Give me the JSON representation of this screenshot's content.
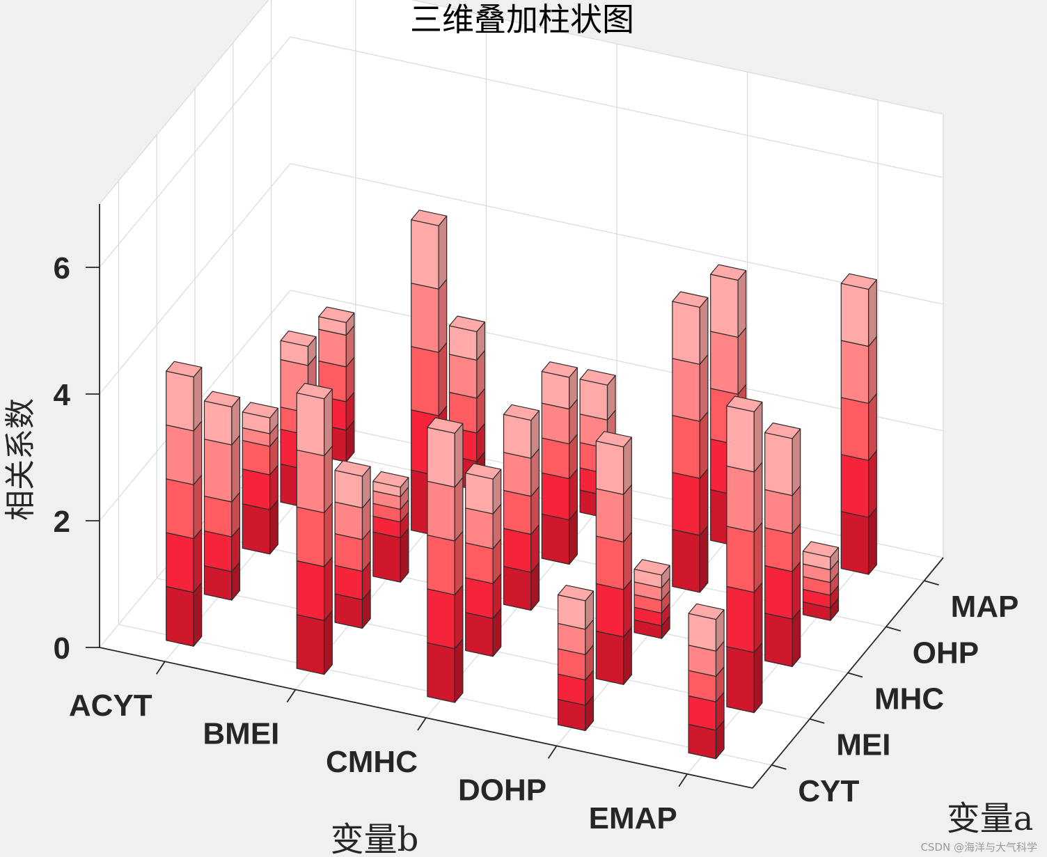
{
  "chart_data": {
    "type": "bar",
    "subtype": "3d-stacked",
    "title": "三维叠加柱状图",
    "xlabel": "变量b",
    "ylabel": "变量a",
    "zlabel": "相关系数",
    "x_categories": [
      "ACYT",
      "BMEI",
      "CMHC",
      "DOHP",
      "EMAP"
    ],
    "y_categories": [
      "CYT",
      "MEI",
      "MHC",
      "OHP",
      "MAP"
    ],
    "zticks": [
      "0",
      "2",
      "4",
      "6"
    ],
    "zlim": [
      0,
      7
    ],
    "grid": true,
    "stack_colors": [
      "#d0182c",
      "#f5243a",
      "#ff5c62",
      "#ff8587",
      "#ffaaa8"
    ],
    "bars": [
      {
        "x": "ACYT",
        "y": "CYT",
        "segments": [
          0.85,
          0.85,
          0.85,
          0.85,
          0.85
        ]
      },
      {
        "x": "ACYT",
        "y": "MEI",
        "segments": [
          0.45,
          0.55,
          0.55,
          0.9,
          0.6
        ]
      },
      {
        "x": "ACYT",
        "y": "MHC",
        "segments": [
          0.7,
          0.55,
          0.45,
          0.2,
          0.25
        ]
      },
      {
        "x": "ACYT",
        "y": "OHP",
        "segments": [
          0.6,
          0.55,
          0.35,
          0.75,
          0.3
        ]
      },
      {
        "x": "ACYT",
        "y": "MAP",
        "segments": [
          0.5,
          0.45,
          0.55,
          0.5,
          0.2
        ]
      },
      {
        "x": "BMEI",
        "y": "CYT",
        "segments": [
          0.85,
          0.85,
          0.85,
          0.9,
          0.9
        ]
      },
      {
        "x": "BMEI",
        "y": "MEI",
        "segments": [
          0.45,
          0.45,
          0.5,
          0.5,
          0.5
        ]
      },
      {
        "x": "BMEI",
        "y": "MHC",
        "segments": [
          0.7,
          0.25,
          0.2,
          0.2,
          0.15
        ]
      },
      {
        "x": "BMEI",
        "y": "OHP",
        "segments": [
          0.95,
          0.95,
          1.0,
          1.0,
          1.0
        ]
      },
      {
        "x": "BMEI",
        "y": "MAP",
        "segments": [
          0.45,
          0.45,
          0.55,
          0.6,
          0.45
        ]
      },
      {
        "x": "CMHC",
        "y": "CYT",
        "segments": [
          0.85,
          0.85,
          0.85,
          0.85,
          0.85
        ]
      },
      {
        "x": "CMHC",
        "y": "MEI",
        "segments": [
          0.6,
          0.55,
          0.55,
          0.55,
          0.55
        ]
      },
      {
        "x": "CMHC",
        "y": "MHC",
        "segments": [
          0.6,
          0.6,
          0.6,
          0.6,
          0.6
        ]
      },
      {
        "x": "CMHC",
        "y": "OHP",
        "segments": [
          0.7,
          0.65,
          0.55,
          0.55,
          0.5
        ]
      },
      {
        "x": "CMHC",
        "y": "MAP",
        "segments": [
          0.35,
          0.35,
          0.4,
          0.45,
          0.55
        ]
      },
      {
        "x": "DOHP",
        "y": "CYT",
        "segments": [
          0.4,
          0.4,
          0.4,
          0.4,
          0.45
        ]
      },
      {
        "x": "DOHP",
        "y": "MEI",
        "segments": [
          0.75,
          0.75,
          0.75,
          0.75,
          0.75
        ]
      },
      {
        "x": "DOHP",
        "y": "MHC",
        "segments": [
          0.2,
          0.2,
          0.2,
          0.2,
          0.2
        ]
      },
      {
        "x": "DOHP",
        "y": "OHP",
        "segments": [
          0.9,
          0.9,
          0.9,
          0.9,
          0.9
        ]
      },
      {
        "x": "DOHP",
        "y": "MAP",
        "segments": [
          0.8,
          0.8,
          0.8,
          0.9,
          0.9
        ]
      },
      {
        "x": "EMAP",
        "y": "CYT",
        "segments": [
          0.45,
          0.45,
          0.4,
          0.4,
          0.5
        ]
      },
      {
        "x": "EMAP",
        "y": "MEI",
        "segments": [
          0.95,
          0.95,
          0.95,
          0.95,
          0.95
        ]
      },
      {
        "x": "EMAP",
        "y": "MHC",
        "segments": [
          0.75,
          0.75,
          0.6,
          0.6,
          0.9
        ]
      },
      {
        "x": "EMAP",
        "y": "OHP",
        "segments": [
          0.2,
          0.2,
          0.2,
          0.2,
          0.2
        ]
      },
      {
        "x": "EMAP",
        "y": "MAP",
        "segments": [
          0.9,
          0.9,
          0.9,
          0.9,
          0.9
        ]
      }
    ]
  },
  "watermark": "CSDN @海洋与大气科学"
}
